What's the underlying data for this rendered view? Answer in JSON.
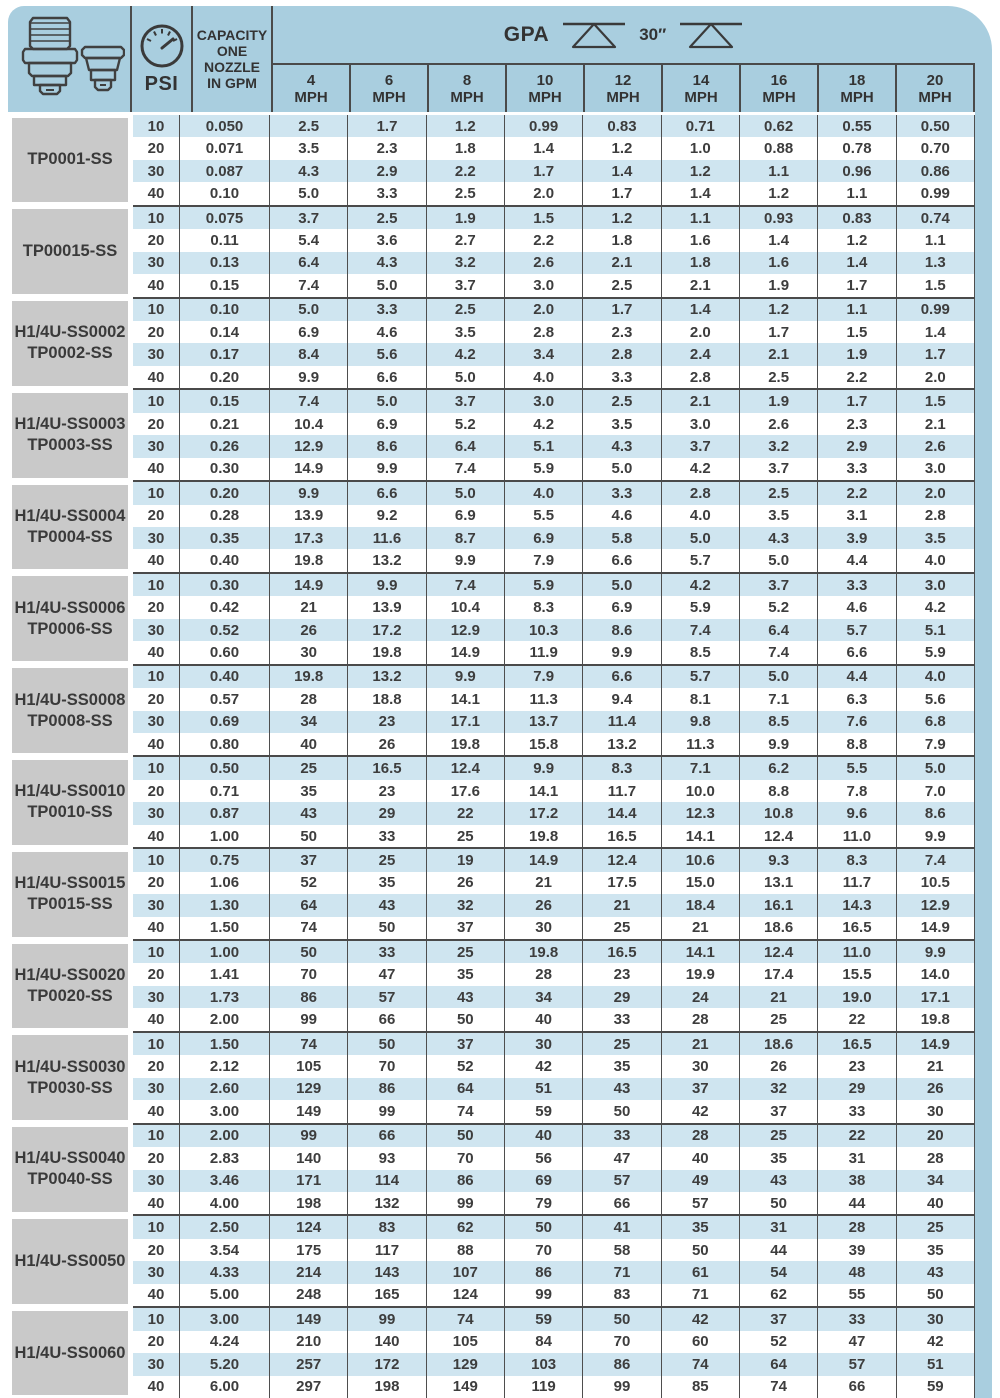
{
  "header": {
    "psi_label": "PSI",
    "capacity_label": "CAPACITY\nONE\nNOZZLE\nIN GPM",
    "gpa_label": "GPA",
    "spacing_label": "30″",
    "icons": {
      "left_image": "male-threaded-nozzle-body",
      "right_image": "quick-cap-nozzle",
      "gauge": "pressure-gauge-icon",
      "spray": "spray-fan-icon"
    }
  },
  "colors": {
    "panel_blue": "#a9cedf",
    "stripe_blue": "#cfe5f0",
    "label_gray": "#c9c9c9",
    "line_dark": "#4a4a4a",
    "text_dark": "#3d3d3d"
  },
  "table": {
    "speed_unit": "MPH",
    "speed_columns": [
      "4",
      "6",
      "8",
      "10",
      "12",
      "14",
      "16",
      "18",
      "20"
    ],
    "psi_values": [
      "10",
      "20",
      "30",
      "40"
    ],
    "groups": [
      {
        "models": [
          "TP0001-SS"
        ],
        "rows": [
          {
            "psi": "10",
            "capacity_gpm": "0.050",
            "gpa": [
              "2.5",
              "1.7",
              "1.2",
              "0.99",
              "0.83",
              "0.71",
              "0.62",
              "0.55",
              "0.50"
            ]
          },
          {
            "psi": "20",
            "capacity_gpm": "0.071",
            "gpa": [
              "3.5",
              "2.3",
              "1.8",
              "1.4",
              "1.2",
              "1.0",
              "0.88",
              "0.78",
              "0.70"
            ]
          },
          {
            "psi": "30",
            "capacity_gpm": "0.087",
            "gpa": [
              "4.3",
              "2.9",
              "2.2",
              "1.7",
              "1.4",
              "1.2",
              "1.1",
              "0.96",
              "0.86"
            ]
          },
          {
            "psi": "40",
            "capacity_gpm": "0.10",
            "gpa": [
              "5.0",
              "3.3",
              "2.5",
              "2.0",
              "1.7",
              "1.4",
              "1.2",
              "1.1",
              "0.99"
            ]
          }
        ]
      },
      {
        "models": [
          "TP00015-SS"
        ],
        "rows": [
          {
            "psi": "10",
            "capacity_gpm": "0.075",
            "gpa": [
              "3.7",
              "2.5",
              "1.9",
              "1.5",
              "1.2",
              "1.1",
              "0.93",
              "0.83",
              "0.74"
            ]
          },
          {
            "psi": "20",
            "capacity_gpm": "0.11",
            "gpa": [
              "5.4",
              "3.6",
              "2.7",
              "2.2",
              "1.8",
              "1.6",
              "1.4",
              "1.2",
              "1.1"
            ]
          },
          {
            "psi": "30",
            "capacity_gpm": "0.13",
            "gpa": [
              "6.4",
              "4.3",
              "3.2",
              "2.6",
              "2.1",
              "1.8",
              "1.6",
              "1.4",
              "1.3"
            ]
          },
          {
            "psi": "40",
            "capacity_gpm": "0.15",
            "gpa": [
              "7.4",
              "5.0",
              "3.7",
              "3.0",
              "2.5",
              "2.1",
              "1.9",
              "1.7",
              "1.5"
            ]
          }
        ]
      },
      {
        "models": [
          "H1/4U-SS0002",
          "TP0002-SS"
        ],
        "rows": [
          {
            "psi": "10",
            "capacity_gpm": "0.10",
            "gpa": [
              "5.0",
              "3.3",
              "2.5",
              "2.0",
              "1.7",
              "1.4",
              "1.2",
              "1.1",
              "0.99"
            ]
          },
          {
            "psi": "20",
            "capacity_gpm": "0.14",
            "gpa": [
              "6.9",
              "4.6",
              "3.5",
              "2.8",
              "2.3",
              "2.0",
              "1.7",
              "1.5",
              "1.4"
            ]
          },
          {
            "psi": "30",
            "capacity_gpm": "0.17",
            "gpa": [
              "8.4",
              "5.6",
              "4.2",
              "3.4",
              "2.8",
              "2.4",
              "2.1",
              "1.9",
              "1.7"
            ]
          },
          {
            "psi": "40",
            "capacity_gpm": "0.20",
            "gpa": [
              "9.9",
              "6.6",
              "5.0",
              "4.0",
              "3.3",
              "2.8",
              "2.5",
              "2.2",
              "2.0"
            ]
          }
        ]
      },
      {
        "models": [
          "H1/4U-SS0003",
          "TP0003-SS"
        ],
        "rows": [
          {
            "psi": "10",
            "capacity_gpm": "0.15",
            "gpa": [
              "7.4",
              "5.0",
              "3.7",
              "3.0",
              "2.5",
              "2.1",
              "1.9",
              "1.7",
              "1.5"
            ]
          },
          {
            "psi": "20",
            "capacity_gpm": "0.21",
            "gpa": [
              "10.4",
              "6.9",
              "5.2",
              "4.2",
              "3.5",
              "3.0",
              "2.6",
              "2.3",
              "2.1"
            ]
          },
          {
            "psi": "30",
            "capacity_gpm": "0.26",
            "gpa": [
              "12.9",
              "8.6",
              "6.4",
              "5.1",
              "4.3",
              "3.7",
              "3.2",
              "2.9",
              "2.6"
            ]
          },
          {
            "psi": "40",
            "capacity_gpm": "0.30",
            "gpa": [
              "14.9",
              "9.9",
              "7.4",
              "5.9",
              "5.0",
              "4.2",
              "3.7",
              "3.3",
              "3.0"
            ]
          }
        ]
      },
      {
        "models": [
          "H1/4U-SS0004",
          "TP0004-SS"
        ],
        "rows": [
          {
            "psi": "10",
            "capacity_gpm": "0.20",
            "gpa": [
              "9.9",
              "6.6",
              "5.0",
              "4.0",
              "3.3",
              "2.8",
              "2.5",
              "2.2",
              "2.0"
            ]
          },
          {
            "psi": "20",
            "capacity_gpm": "0.28",
            "gpa": [
              "13.9",
              "9.2",
              "6.9",
              "5.5",
              "4.6",
              "4.0",
              "3.5",
              "3.1",
              "2.8"
            ]
          },
          {
            "psi": "30",
            "capacity_gpm": "0.35",
            "gpa": [
              "17.3",
              "11.6",
              "8.7",
              "6.9",
              "5.8",
              "5.0",
              "4.3",
              "3.9",
              "3.5"
            ]
          },
          {
            "psi": "40",
            "capacity_gpm": "0.40",
            "gpa": [
              "19.8",
              "13.2",
              "9.9",
              "7.9",
              "6.6",
              "5.7",
              "5.0",
              "4.4",
              "4.0"
            ]
          }
        ]
      },
      {
        "models": [
          "H1/4U-SS0006",
          "TP0006-SS"
        ],
        "rows": [
          {
            "psi": "10",
            "capacity_gpm": "0.30",
            "gpa": [
              "14.9",
              "9.9",
              "7.4",
              "5.9",
              "5.0",
              "4.2",
              "3.7",
              "3.3",
              "3.0"
            ]
          },
          {
            "psi": "20",
            "capacity_gpm": "0.42",
            "gpa": [
              "21",
              "13.9",
              "10.4",
              "8.3",
              "6.9",
              "5.9",
              "5.2",
              "4.6",
              "4.2"
            ]
          },
          {
            "psi": "30",
            "capacity_gpm": "0.52",
            "gpa": [
              "26",
              "17.2",
              "12.9",
              "10.3",
              "8.6",
              "7.4",
              "6.4",
              "5.7",
              "5.1"
            ]
          },
          {
            "psi": "40",
            "capacity_gpm": "0.60",
            "gpa": [
              "30",
              "19.8",
              "14.9",
              "11.9",
              "9.9",
              "8.5",
              "7.4",
              "6.6",
              "5.9"
            ]
          }
        ]
      },
      {
        "models": [
          "H1/4U-SS0008",
          "TP0008-SS"
        ],
        "rows": [
          {
            "psi": "10",
            "capacity_gpm": "0.40",
            "gpa": [
              "19.8",
              "13.2",
              "9.9",
              "7.9",
              "6.6",
              "5.7",
              "5.0",
              "4.4",
              "4.0"
            ]
          },
          {
            "psi": "20",
            "capacity_gpm": "0.57",
            "gpa": [
              "28",
              "18.8",
              "14.1",
              "11.3",
              "9.4",
              "8.1",
              "7.1",
              "6.3",
              "5.6"
            ]
          },
          {
            "psi": "30",
            "capacity_gpm": "0.69",
            "gpa": [
              "34",
              "23",
              "17.1",
              "13.7",
              "11.4",
              "9.8",
              "8.5",
              "7.6",
              "6.8"
            ]
          },
          {
            "psi": "40",
            "capacity_gpm": "0.80",
            "gpa": [
              "40",
              "26",
              "19.8",
              "15.8",
              "13.2",
              "11.3",
              "9.9",
              "8.8",
              "7.9"
            ]
          }
        ]
      },
      {
        "models": [
          "H1/4U-SS0010",
          "TP0010-SS"
        ],
        "rows": [
          {
            "psi": "10",
            "capacity_gpm": "0.50",
            "gpa": [
              "25",
              "16.5",
              "12.4",
              "9.9",
              "8.3",
              "7.1",
              "6.2",
              "5.5",
              "5.0"
            ]
          },
          {
            "psi": "20",
            "capacity_gpm": "0.71",
            "gpa": [
              "35",
              "23",
              "17.6",
              "14.1",
              "11.7",
              "10.0",
              "8.8",
              "7.8",
              "7.0"
            ]
          },
          {
            "psi": "30",
            "capacity_gpm": "0.87",
            "gpa": [
              "43",
              "29",
              "22",
              "17.2",
              "14.4",
              "12.3",
              "10.8",
              "9.6",
              "8.6"
            ]
          },
          {
            "psi": "40",
            "capacity_gpm": "1.00",
            "gpa": [
              "50",
              "33",
              "25",
              "19.8",
              "16.5",
              "14.1",
              "12.4",
              "11.0",
              "9.9"
            ]
          }
        ]
      },
      {
        "models": [
          "H1/4U-SS0015",
          "TP0015-SS"
        ],
        "rows": [
          {
            "psi": "10",
            "capacity_gpm": "0.75",
            "gpa": [
              "37",
              "25",
              "19",
              "14.9",
              "12.4",
              "10.6",
              "9.3",
              "8.3",
              "7.4"
            ]
          },
          {
            "psi": "20",
            "capacity_gpm": "1.06",
            "gpa": [
              "52",
              "35",
              "26",
              "21",
              "17.5",
              "15.0",
              "13.1",
              "11.7",
              "10.5"
            ]
          },
          {
            "psi": "30",
            "capacity_gpm": "1.30",
            "gpa": [
              "64",
              "43",
              "32",
              "26",
              "21",
              "18.4",
              "16.1",
              "14.3",
              "12.9"
            ]
          },
          {
            "psi": "40",
            "capacity_gpm": "1.50",
            "gpa": [
              "74",
              "50",
              "37",
              "30",
              "25",
              "21",
              "18.6",
              "16.5",
              "14.9"
            ]
          }
        ]
      },
      {
        "models": [
          "H1/4U-SS0020",
          "TP0020-SS"
        ],
        "rows": [
          {
            "psi": "10",
            "capacity_gpm": "1.00",
            "gpa": [
              "50",
              "33",
              "25",
              "19.8",
              "16.5",
              "14.1",
              "12.4",
              "11.0",
              "9.9"
            ]
          },
          {
            "psi": "20",
            "capacity_gpm": "1.41",
            "gpa": [
              "70",
              "47",
              "35",
              "28",
              "23",
              "19.9",
              "17.4",
              "15.5",
              "14.0"
            ]
          },
          {
            "psi": "30",
            "capacity_gpm": "1.73",
            "gpa": [
              "86",
              "57",
              "43",
              "34",
              "29",
              "24",
              "21",
              "19.0",
              "17.1"
            ]
          },
          {
            "psi": "40",
            "capacity_gpm": "2.00",
            "gpa": [
              "99",
              "66",
              "50",
              "40",
              "33",
              "28",
              "25",
              "22",
              "19.8"
            ]
          }
        ]
      },
      {
        "models": [
          "H1/4U-SS0030",
          "TP0030-SS"
        ],
        "rows": [
          {
            "psi": "10",
            "capacity_gpm": "1.50",
            "gpa": [
              "74",
              "50",
              "37",
              "30",
              "25",
              "21",
              "18.6",
              "16.5",
              "14.9"
            ]
          },
          {
            "psi": "20",
            "capacity_gpm": "2.12",
            "gpa": [
              "105",
              "70",
              "52",
              "42",
              "35",
              "30",
              "26",
              "23",
              "21"
            ]
          },
          {
            "psi": "30",
            "capacity_gpm": "2.60",
            "gpa": [
              "129",
              "86",
              "64",
              "51",
              "43",
              "37",
              "32",
              "29",
              "26"
            ]
          },
          {
            "psi": "40",
            "capacity_gpm": "3.00",
            "gpa": [
              "149",
              "99",
              "74",
              "59",
              "50",
              "42",
              "37",
              "33",
              "30"
            ]
          }
        ]
      },
      {
        "models": [
          "H1/4U-SS0040",
          "TP0040-SS"
        ],
        "rows": [
          {
            "psi": "10",
            "capacity_gpm": "2.00",
            "gpa": [
              "99",
              "66",
              "50",
              "40",
              "33",
              "28",
              "25",
              "22",
              "20"
            ]
          },
          {
            "psi": "20",
            "capacity_gpm": "2.83",
            "gpa": [
              "140",
              "93",
              "70",
              "56",
              "47",
              "40",
              "35",
              "31",
              "28"
            ]
          },
          {
            "psi": "30",
            "capacity_gpm": "3.46",
            "gpa": [
              "171",
              "114",
              "86",
              "69",
              "57",
              "49",
              "43",
              "38",
              "34"
            ]
          },
          {
            "psi": "40",
            "capacity_gpm": "4.00",
            "gpa": [
              "198",
              "132",
              "99",
              "79",
              "66",
              "57",
              "50",
              "44",
              "40"
            ]
          }
        ]
      },
      {
        "models": [
          "H1/4U-SS0050"
        ],
        "rows": [
          {
            "psi": "10",
            "capacity_gpm": "2.50",
            "gpa": [
              "124",
              "83",
              "62",
              "50",
              "41",
              "35",
              "31",
              "28",
              "25"
            ]
          },
          {
            "psi": "20",
            "capacity_gpm": "3.54",
            "gpa": [
              "175",
              "117",
              "88",
              "70",
              "58",
              "50",
              "44",
              "39",
              "35"
            ]
          },
          {
            "psi": "30",
            "capacity_gpm": "4.33",
            "gpa": [
              "214",
              "143",
              "107",
              "86",
              "71",
              "61",
              "54",
              "48",
              "43"
            ]
          },
          {
            "psi": "40",
            "capacity_gpm": "5.00",
            "gpa": [
              "248",
              "165",
              "124",
              "99",
              "83",
              "71",
              "62",
              "55",
              "50"
            ]
          }
        ]
      },
      {
        "models": [
          "H1/4U-SS0060"
        ],
        "rows": [
          {
            "psi": "10",
            "capacity_gpm": "3.00",
            "gpa": [
              "149",
              "99",
              "74",
              "59",
              "50",
              "42",
              "37",
              "33",
              "30"
            ]
          },
          {
            "psi": "20",
            "capacity_gpm": "4.24",
            "gpa": [
              "210",
              "140",
              "105",
              "84",
              "70",
              "60",
              "52",
              "47",
              "42"
            ]
          },
          {
            "psi": "30",
            "capacity_gpm": "5.20",
            "gpa": [
              "257",
              "172",
              "129",
              "103",
              "86",
              "74",
              "64",
              "57",
              "51"
            ]
          },
          {
            "psi": "40",
            "capacity_gpm": "6.00",
            "gpa": [
              "297",
              "198",
              "149",
              "119",
              "99",
              "85",
              "74",
              "66",
              "59"
            ]
          }
        ]
      }
    ]
  }
}
